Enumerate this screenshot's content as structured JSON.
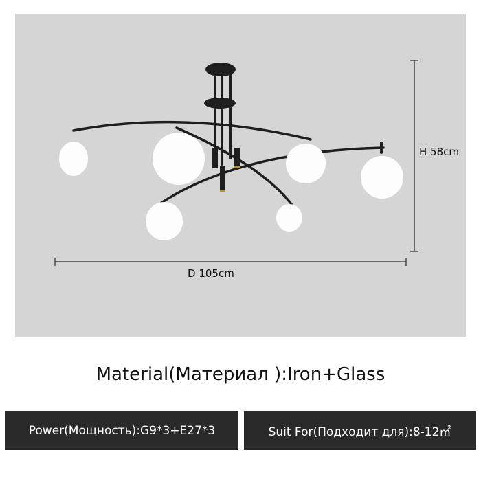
{
  "dimensions": {
    "height_label": "H 58cm",
    "diameter_label": "D 105cm"
  },
  "material": "Material(Материал ):Iron+Glass",
  "specs": {
    "power": "Power(Мощность):G9*3+E27*3",
    "suit_for": "Suit For(Подходит для):8-12㎡"
  },
  "colors": {
    "background": "#d5d5d5",
    "spec_box": "#2a2a2a",
    "lamp_metal": "#1e1e1e",
    "accent_gold": "#b8903a"
  }
}
